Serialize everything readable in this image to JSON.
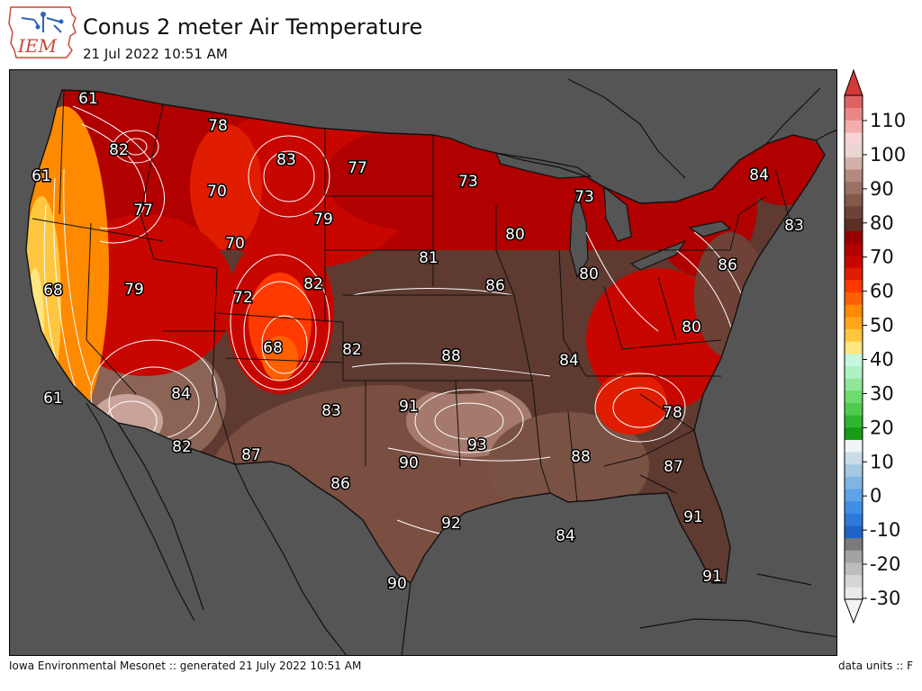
{
  "header": {
    "logo_text": "IEM",
    "title": "Conus 2 meter Air Temperature",
    "subtitle": "21 Jul 2022 10:51 AM"
  },
  "footer": {
    "left": "Iowa Environmental Mesonet :: generated 21 July 2022 10:51 AM",
    "right": "data units :: F"
  },
  "colors": {
    "background": "#555555",
    "land_default": "#5e3a30"
  },
  "colorbar": {
    "ticks": [
      "110",
      "100",
      "90",
      "80",
      "70",
      "60",
      "50",
      "40",
      "30",
      "20",
      "10",
      "0",
      "-10",
      "-20",
      "-30"
    ],
    "bands": [
      "#e9e9e9",
      "#d6d6d6",
      "#bdbdbd",
      "#a3a3a3",
      "#7a7a7a",
      "#1f63c9",
      "#2d78dc",
      "#3f8fe8",
      "#5ea3e8",
      "#7fb5e3",
      "#a4c8e2",
      "#c8dde8",
      "#eef4f8",
      "#169b16",
      "#2fb52f",
      "#4fcb4f",
      "#6ddc6d",
      "#8fe89a",
      "#aef2c4",
      "#c6f7de",
      "#ffe680",
      "#ffc640",
      "#ffa51a",
      "#ff8a00",
      "#ff6000",
      "#ff3a00",
      "#e01d00",
      "#c80600",
      "#b00000",
      "#970000",
      "#5a2f26",
      "#6e4236",
      "#83594c",
      "#9a7064",
      "#b48a80",
      "#d2b0aa",
      "#ecd6d2",
      "#f7d3d3",
      "#f4adad",
      "#ec8787",
      "#e06363"
    ],
    "over_color": "#d43a3a",
    "under_color": "#f3f3f3"
  },
  "station_labels": [
    {
      "value": "61"
    },
    {
      "value": "78"
    },
    {
      "value": "82"
    },
    {
      "value": "83"
    },
    {
      "value": "77"
    },
    {
      "value": "61"
    },
    {
      "value": "70"
    },
    {
      "value": "73"
    },
    {
      "value": "73"
    },
    {
      "value": "84"
    },
    {
      "value": "77"
    },
    {
      "value": "79"
    },
    {
      "value": "83"
    },
    {
      "value": "70"
    },
    {
      "value": "80"
    },
    {
      "value": "81"
    },
    {
      "value": "86"
    },
    {
      "value": "68"
    },
    {
      "value": "79"
    },
    {
      "value": "82"
    },
    {
      "value": "72"
    },
    {
      "value": "86"
    },
    {
      "value": "80"
    },
    {
      "value": "80"
    },
    {
      "value": "68"
    },
    {
      "value": "82"
    },
    {
      "value": "88"
    },
    {
      "value": "84"
    },
    {
      "value": "84"
    },
    {
      "value": "61"
    },
    {
      "value": "91"
    },
    {
      "value": "83"
    },
    {
      "value": "78"
    },
    {
      "value": "93"
    },
    {
      "value": "82"
    },
    {
      "value": "87"
    },
    {
      "value": "90"
    },
    {
      "value": "88"
    },
    {
      "value": "87"
    },
    {
      "value": "86"
    },
    {
      "value": "92"
    },
    {
      "value": "91"
    },
    {
      "value": "84"
    },
    {
      "value": "90"
    },
    {
      "value": "91"
    }
  ]
}
